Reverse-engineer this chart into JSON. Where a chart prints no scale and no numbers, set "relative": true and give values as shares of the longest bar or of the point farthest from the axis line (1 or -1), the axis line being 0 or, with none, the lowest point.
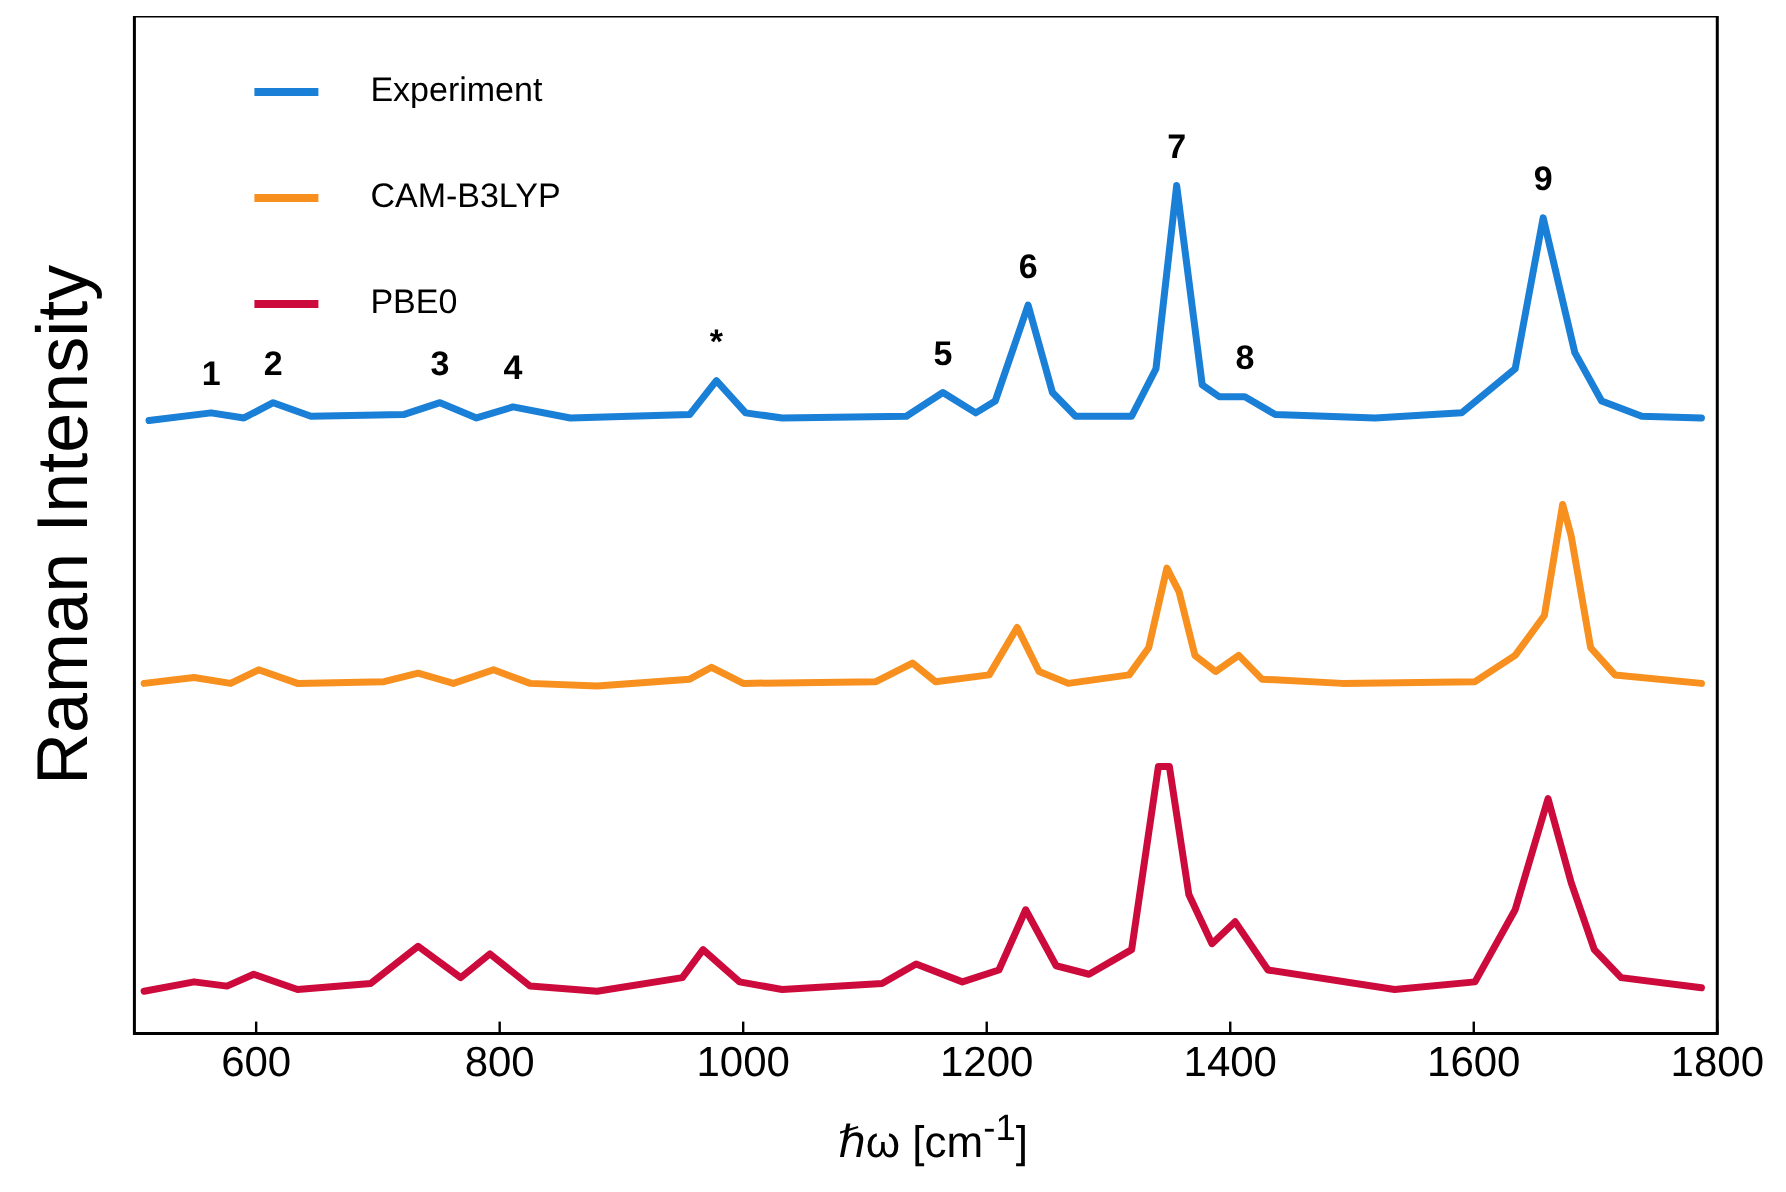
{
  "chart_data": {
    "type": "line",
    "relative": true,
    "xlabel": "ℏω [cm$^{-1}$]",
    "ylabel": "Raman Intensity",
    "xlim": [
      500,
      1800
    ],
    "xticks": [
      600,
      800,
      1000,
      1200,
      1400,
      1600,
      1800
    ],
    "grid": false,
    "legend": "top left",
    "marker": "none",
    "line_style": "solid",
    "series": [
      {
        "name": "Experiment",
        "color": "#1a7fd6",
        "x": [
          512,
          563,
          590,
          614,
          645,
          721,
          751,
          781,
          811,
          858,
          956,
          978,
          1002,
          1032,
          1134,
          1164,
          1191,
          1207,
          1234,
          1254,
          1273,
          1319,
          1339,
          1356,
          1377,
          1391,
          1412,
          1437,
          1519,
          1590,
          1634,
          1657,
          1683,
          1705,
          1738,
          1787
        ],
        "values": [
          0.723,
          0.732,
          0.726,
          0.744,
          0.728,
          0.73,
          0.744,
          0.726,
          0.739,
          0.726,
          0.73,
          0.77,
          0.732,
          0.726,
          0.728,
          0.756,
          0.732,
          0.746,
          0.859,
          0.756,
          0.728,
          0.728,
          0.784,
          1,
          0.765,
          0.751,
          0.751,
          0.73,
          0.726,
          0.732,
          0.784,
          0.962,
          0.803,
          0.746,
          0.728,
          0.726
        ]
      },
      {
        "name": "CAM-B3LYP",
        "color": "#f7901e",
        "x": [
          508,
          549,
          579,
          602,
          634,
          705,
          733,
          762,
          795,
          825,
          880,
          956,
          974,
          1000,
          1109,
          1139,
          1158,
          1202,
          1225,
          1243,
          1267,
          1317,
          1333,
          1348,
          1358,
          1371,
          1388,
          1407,
          1426,
          1492,
          1601,
          1634,
          1658,
          1673,
          1680,
          1696,
          1716,
          1787
        ],
        "values": [
          0.413,
          0.42,
          0.413,
          0.429,
          0.413,
          0.415,
          0.425,
          0.413,
          0.429,
          0.413,
          0.41,
          0.418,
          0.432,
          0.413,
          0.415,
          0.437,
          0.415,
          0.423,
          0.479,
          0.427,
          0.413,
          0.423,
          0.455,
          0.549,
          0.521,
          0.446,
          0.427,
          0.446,
          0.418,
          0.413,
          0.415,
          0.446,
          0.493,
          0.624,
          0.587,
          0.455,
          0.423,
          0.413
        ]
      },
      {
        "name": "PBE0",
        "color": "#cc0a3c",
        "x": [
          508,
          549,
          576,
          598,
          634,
          694,
          733,
          768,
          792,
          825,
          880,
          950,
          967,
          997,
          1032,
          1114,
          1142,
          1180,
          1210,
          1232,
          1257,
          1284,
          1319,
          1341,
          1350,
          1366,
          1385,
          1404,
          1431,
          1535,
          1601,
          1634,
          1661,
          1680,
          1699,
          1721,
          1787
        ],
        "values": [
          0.05,
          0.061,
          0.056,
          0.07,
          0.052,
          0.059,
          0.103,
          0.066,
          0.094,
          0.056,
          0.05,
          0.066,
          0.099,
          0.061,
          0.052,
          0.059,
          0.082,
          0.061,
          0.075,
          0.146,
          0.08,
          0.07,
          0.099,
          0.315,
          0.315,
          0.164,
          0.106,
          0.132,
          0.075,
          0.052,
          0.061,
          0.146,
          0.277,
          0.178,
          0.099,
          0.066,
          0.054
        ]
      }
    ],
    "annotations": [
      {
        "text": "1",
        "x": 563,
        "y": 0.732
      },
      {
        "text": "2",
        "x": 614,
        "y": 0.744
      },
      {
        "text": "3",
        "x": 751,
        "y": 0.744
      },
      {
        "text": "4",
        "x": 811,
        "y": 0.739
      },
      {
        "text": "*",
        "x": 978,
        "y": 0.77
      },
      {
        "text": "5",
        "x": 1164,
        "y": 0.756
      },
      {
        "text": "6",
        "x": 1234,
        "y": 0.859
      },
      {
        "text": "7",
        "x": 1356,
        "y": 1
      },
      {
        "text": "8",
        "x": 1412,
        "y": 0.751
      },
      {
        "text": "9",
        "x": 1657,
        "y": 0.962
      }
    ]
  }
}
